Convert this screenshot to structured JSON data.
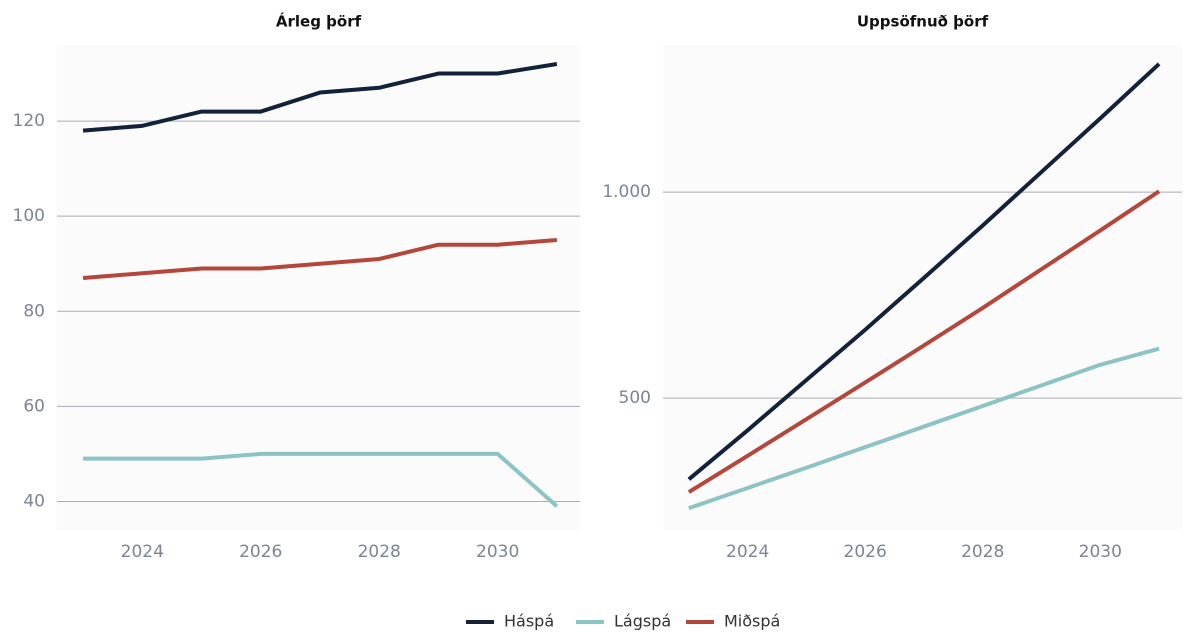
{
  "chart_data": [
    {
      "type": "line",
      "title": "Árleg þörf",
      "x": [
        2023,
        2024,
        2025,
        2026,
        2027,
        2028,
        2029,
        2030,
        2031
      ],
      "series": [
        {
          "name": "Háspá",
          "color": "#13223a",
          "values": [
            118,
            119,
            122,
            122,
            126,
            127,
            130,
            130,
            132
          ]
        },
        {
          "name": "Lágspá",
          "color": "#8cc3c5",
          "values": [
            49,
            49,
            49,
            50,
            50,
            50,
            50,
            50,
            39
          ]
        },
        {
          "name": "Miðspá",
          "color": "#b5473a",
          "values": [
            87,
            88,
            89,
            89,
            90,
            91,
            94,
            94,
            95
          ]
        }
      ],
      "xlim": [
        2022.56,
        2031.39
      ],
      "xticks": [
        2024,
        2026,
        2028,
        2030
      ],
      "ylim": [
        34,
        136
      ],
      "yticks": [
        40,
        60,
        80,
        100,
        120
      ],
      "grid": true
    },
    {
      "type": "line",
      "title": "Uppsöfnuð þörf",
      "x": [
        2023,
        2024,
        2025,
        2026,
        2027,
        2028,
        2029,
        2030,
        2031
      ],
      "series": [
        {
          "name": "Háspá",
          "color": "#13223a",
          "values": [
            303,
            422,
            544,
            666,
            792,
            919,
            1049,
            1179,
            1311
          ]
        },
        {
          "name": "Lágspá",
          "color": "#8cc3c5",
          "values": [
            233,
            282,
            331,
            381,
            431,
            481,
            531,
            581,
            620
          ]
        },
        {
          "name": "Miðspá",
          "color": "#b5473a",
          "values": [
            272,
            360,
            449,
            538,
            628,
            719,
            813,
            907,
            1002
          ]
        }
      ],
      "xlim": [
        2022.56,
        2031.39
      ],
      "xticks": [
        2024,
        2026,
        2028,
        2030
      ],
      "ylim": [
        180,
        1357
      ],
      "yticks": [
        500,
        {
          "value": 1000,
          "label": "1.000"
        }
      ],
      "grid": true
    }
  ]
}
